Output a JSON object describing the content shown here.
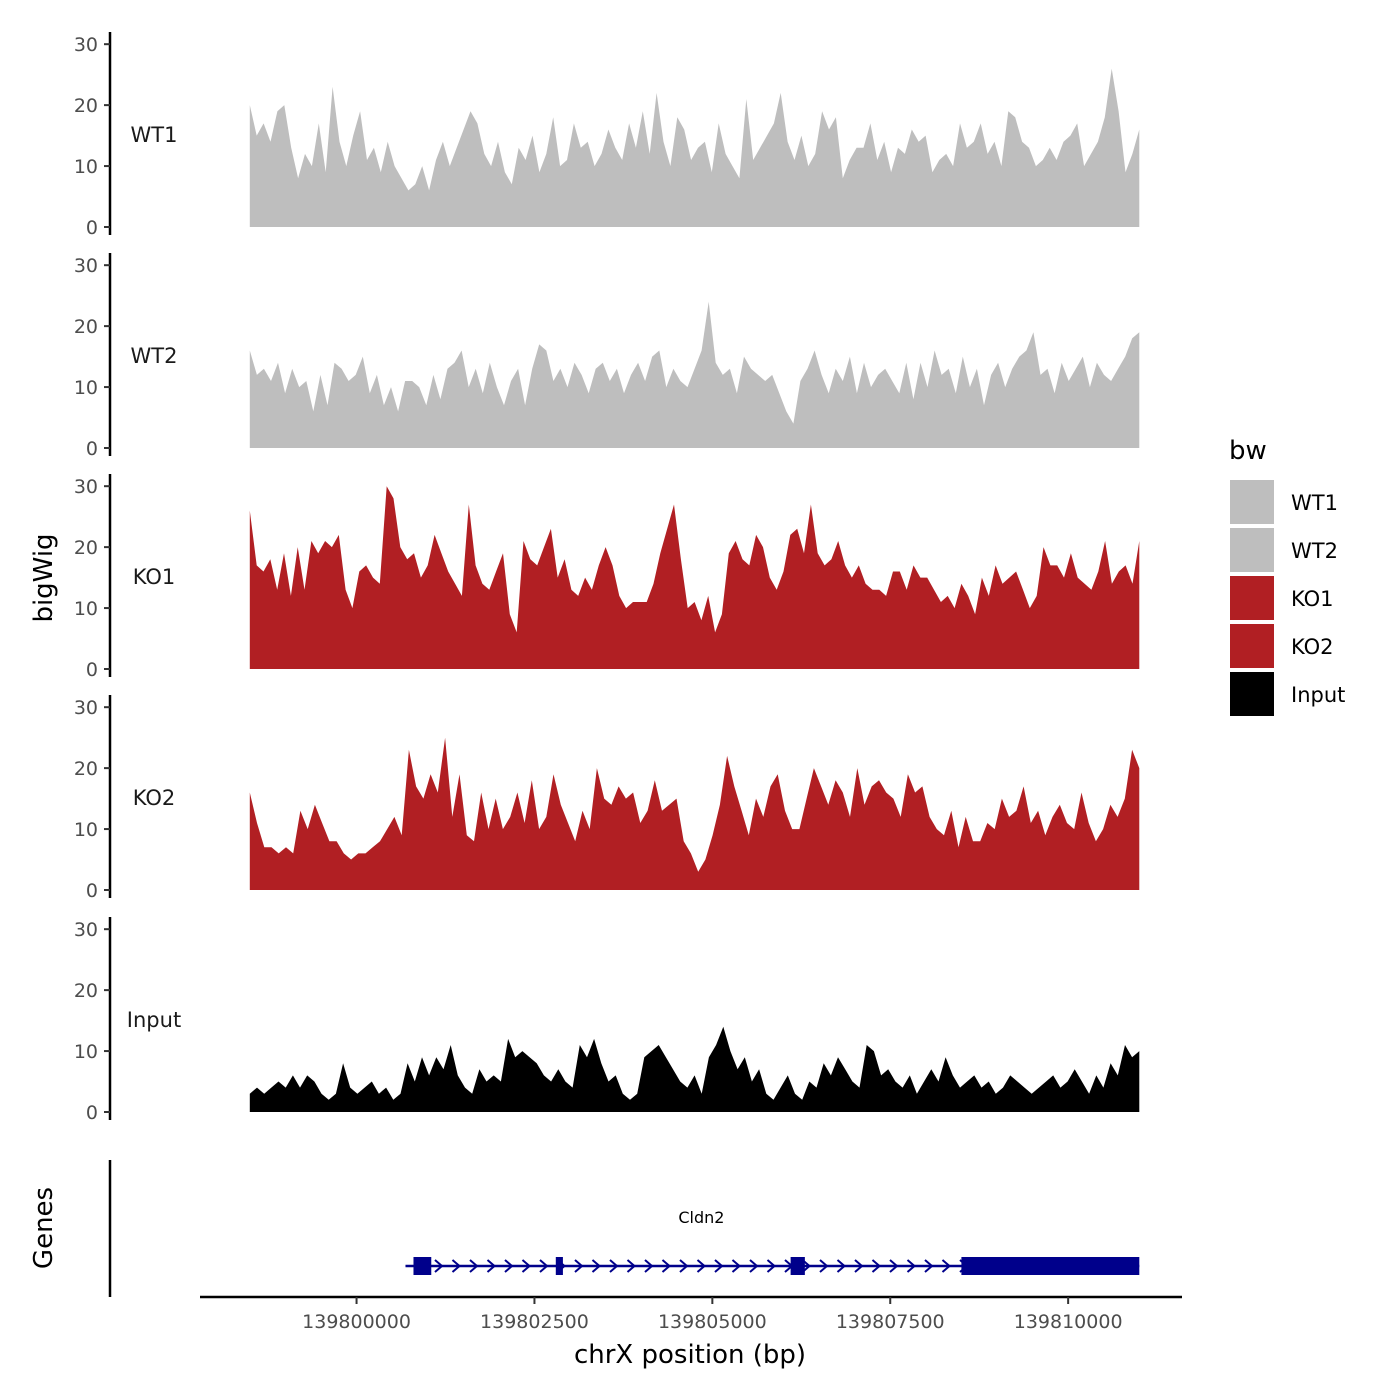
{
  "chart_data": {
    "type": "area",
    "y_axis_title": "bigWig",
    "x_axis_title": "chrX position (bp)",
    "genes_axis_title": "Genes",
    "y_ticks": [
      "0",
      "10",
      "20",
      "30"
    ],
    "y_tick_values": [
      0,
      10,
      20,
      30
    ],
    "ylim": [
      0,
      32
    ],
    "x_ticks": [
      "139800000",
      "139802500",
      "139805000",
      "139807500",
      "139810000"
    ],
    "x_tick_values": [
      139800000,
      139802500,
      139805000,
      139807500,
      139810000
    ],
    "xlim": [
      139797800,
      139811600
    ],
    "track_range": [
      139798500,
      139811000
    ],
    "series": [
      {
        "name": "WT1",
        "color": "#bebebe",
        "values": [
          20,
          15,
          17,
          14,
          19,
          20,
          13,
          8,
          12,
          10,
          17,
          9,
          23,
          14,
          10,
          15,
          19,
          11,
          13,
          9,
          14,
          10,
          8,
          6,
          7,
          10,
          6,
          11,
          14,
          10,
          13,
          16,
          19,
          17,
          12,
          10,
          14,
          9,
          7,
          13,
          11,
          15,
          9,
          12,
          18,
          10,
          11,
          17,
          13,
          14,
          10,
          12,
          16,
          13,
          11,
          17,
          13,
          19,
          12,
          22,
          14,
          10,
          18,
          16,
          11,
          13,
          14,
          9,
          17,
          12,
          10,
          8,
          21,
          11,
          13,
          15,
          17,
          22,
          14,
          11,
          15,
          10,
          12,
          19,
          16,
          18,
          8,
          11,
          13,
          13,
          17,
          11,
          14,
          9,
          13,
          12,
          16,
          14,
          15,
          9,
          11,
          12,
          10,
          17,
          13,
          14,
          17,
          12,
          14,
          10,
          19,
          18,
          14,
          13,
          10,
          11,
          13,
          11,
          14,
          15,
          17,
          10,
          12,
          14,
          18,
          26,
          19,
          9,
          12,
          16
        ]
      },
      {
        "name": "WT2",
        "color": "#bebebe",
        "values": [
          16,
          12,
          13,
          11,
          14,
          9,
          13,
          10,
          11,
          6,
          12,
          7,
          14,
          13,
          11,
          12,
          15,
          9,
          12,
          7,
          10,
          6,
          11,
          11,
          10,
          7,
          12,
          8,
          13,
          14,
          16,
          10,
          13,
          9,
          14,
          10,
          7,
          11,
          13,
          7,
          13,
          17,
          16,
          11,
          13,
          10,
          14,
          12,
          9,
          13,
          14,
          11,
          13,
          9,
          12,
          14,
          11,
          15,
          16,
          10,
          13,
          11,
          10,
          13,
          16,
          24,
          14,
          12,
          13,
          9,
          15,
          13,
          12,
          11,
          12,
          9,
          6,
          4,
          11,
          13,
          16,
          12,
          9,
          13,
          11,
          15,
          9,
          14,
          10,
          12,
          13,
          11,
          9,
          14,
          8,
          14,
          10,
          16,
          12,
          13,
          9,
          15,
          10,
          13,
          7,
          12,
          14,
          10,
          13,
          15,
          16,
          19,
          12,
          13,
          9,
          14,
          11,
          13,
          15,
          10,
          14,
          12,
          11,
          13,
          15,
          18,
          19
        ]
      },
      {
        "name": "KO1",
        "color": "#b11f23",
        "values": [
          26,
          17,
          16,
          18,
          13,
          19,
          12,
          20,
          13,
          21,
          19,
          21,
          20,
          22,
          13,
          10,
          16,
          17,
          15,
          14,
          30,
          28,
          20,
          18,
          19,
          15,
          17,
          22,
          19,
          16,
          14,
          12,
          27,
          17,
          14,
          13,
          16,
          19,
          9,
          6,
          21,
          18,
          17,
          20,
          23,
          15,
          18,
          13,
          12,
          15,
          13,
          17,
          20,
          17,
          12,
          10,
          11,
          11,
          11,
          14,
          19,
          23,
          27,
          18,
          10,
          11,
          8,
          12,
          6,
          9,
          19,
          21,
          18,
          17,
          22,
          20,
          15,
          13,
          16,
          22,
          23,
          19,
          27,
          19,
          17,
          18,
          21,
          17,
          15,
          17,
          14,
          13,
          13,
          12,
          16,
          16,
          13,
          17,
          15,
          15,
          13,
          11,
          12,
          10,
          14,
          12,
          9,
          15,
          12,
          17,
          14,
          15,
          16,
          13,
          10,
          12,
          20,
          17,
          17,
          15,
          19,
          15,
          14,
          13,
          16,
          21,
          14,
          16,
          17,
          14,
          21
        ]
      },
      {
        "name": "KO2",
        "color": "#b11f23",
        "values": [
          16,
          11,
          7,
          7,
          6,
          7,
          6,
          13,
          10,
          14,
          11,
          8,
          8,
          6,
          5,
          6,
          6,
          7,
          8,
          10,
          12,
          9,
          23,
          17,
          15,
          19,
          16,
          25,
          12,
          19,
          9,
          8,
          16,
          10,
          15,
          10,
          12,
          16,
          11,
          18,
          10,
          12,
          19,
          14,
          11,
          8,
          13,
          10,
          20,
          15,
          14,
          17,
          15,
          16,
          11,
          13,
          18,
          13,
          14,
          15,
          8,
          6,
          3,
          5,
          9,
          14,
          22,
          17,
          13,
          9,
          15,
          12,
          17,
          19,
          13,
          10,
          10,
          15,
          20,
          17,
          14,
          18,
          16,
          12,
          20,
          14,
          17,
          18,
          16,
          15,
          12,
          19,
          16,
          17,
          12,
          10,
          9,
          13,
          7,
          12,
          8,
          8,
          11,
          10,
          15,
          12,
          13,
          17,
          11,
          13,
          9,
          12,
          14,
          11,
          10,
          16,
          11,
          8,
          10,
          14,
          12,
          15,
          23,
          20
        ]
      },
      {
        "name": "Input",
        "color": "#000000",
        "values": [
          3,
          4,
          3,
          4,
          5,
          4,
          6,
          4,
          6,
          5,
          3,
          2,
          3,
          8,
          4,
          3,
          4,
          5,
          3,
          4,
          2,
          3,
          8,
          5,
          9,
          6,
          9,
          7,
          11,
          6,
          4,
          3,
          7,
          5,
          6,
          5,
          12,
          9,
          10,
          9,
          8,
          6,
          5,
          7,
          5,
          4,
          11,
          9,
          12,
          8,
          5,
          6,
          3,
          2,
          3,
          9,
          10,
          11,
          9,
          7,
          5,
          4,
          6,
          3,
          9,
          11,
          14,
          10,
          7,
          9,
          5,
          7,
          3,
          2,
          4,
          6,
          3,
          2,
          5,
          4,
          8,
          6,
          9,
          7,
          5,
          4,
          11,
          10,
          6,
          7,
          5,
          4,
          6,
          3,
          5,
          7,
          5,
          9,
          6,
          4,
          5,
          6,
          4,
          5,
          3,
          4,
          6,
          5,
          4,
          3,
          4,
          5,
          6,
          4,
          5,
          7,
          5,
          3,
          6,
          4,
          8,
          6,
          11,
          9,
          10
        ]
      }
    ],
    "legend": {
      "title": "bw",
      "position": "right"
    },
    "genes": [
      {
        "name": "Cldn2",
        "start": 139800800,
        "end": 139811000,
        "strand": "+",
        "exons": [
          [
            139800800,
            139801050
          ],
          [
            139802800,
            139802900
          ],
          [
            139806100,
            139806300
          ],
          [
            139808500,
            139811000
          ]
        ]
      }
    ]
  }
}
